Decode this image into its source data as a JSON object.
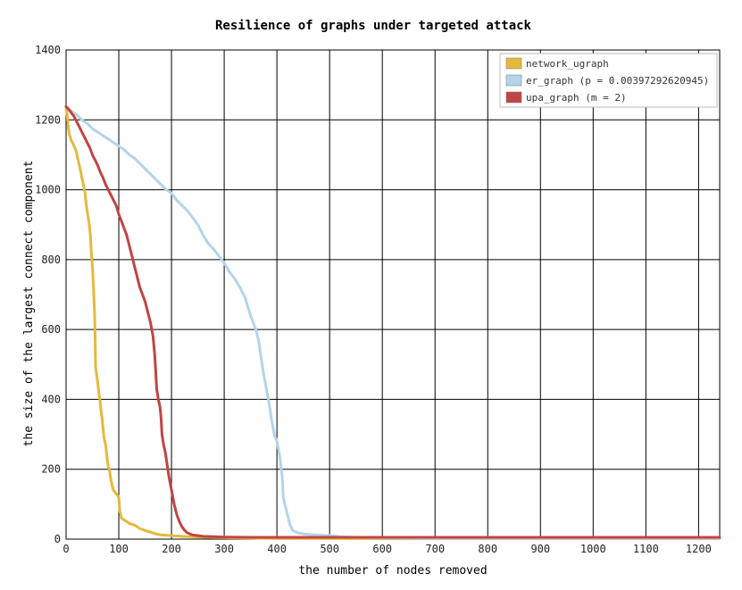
{
  "chart_data": {
    "type": "line",
    "title": "Resilience of graphs under targeted attack",
    "xlabel": "the number of nodes removed",
    "ylabel": "the size of the largest connect component",
    "xlim": [
      0,
      1240
    ],
    "ylim": [
      0,
      1400
    ],
    "xticks": [
      0,
      100,
      200,
      300,
      400,
      500,
      600,
      700,
      800,
      900,
      1000,
      1100,
      1200
    ],
    "yticks": [
      0,
      200,
      400,
      600,
      800,
      1000,
      1200,
      1400
    ],
    "grid": true,
    "legend_position": "top-right",
    "series": [
      {
        "name": "network_ugraph",
        "color": "#e6b93c",
        "x": [
          0,
          2,
          4,
          6,
          8,
          10,
          12,
          15,
          18,
          20,
          22,
          25,
          28,
          30,
          32,
          34,
          36,
          38,
          40,
          42,
          44,
          46,
          48,
          50,
          52,
          54,
          55,
          56,
          58,
          60,
          62,
          64,
          66,
          68,
          70,
          72,
          75,
          78,
          80,
          82,
          85,
          88,
          90,
          95,
          100,
          102,
          105,
          110,
          115,
          120,
          130,
          140,
          150,
          160,
          170,
          180,
          200,
          220,
          250,
          300,
          400,
          500,
          600,
          700,
          800,
          900,
          1000,
          1100,
          1200,
          1240
        ],
        "y": [
          1238,
          1215,
          1180,
          1160,
          1150,
          1140,
          1135,
          1125,
          1115,
          1105,
          1090,
          1070,
          1050,
          1035,
          1020,
          1005,
          990,
          960,
          940,
          920,
          900,
          870,
          820,
          780,
          720,
          650,
          580,
          490,
          470,
          450,
          420,
          400,
          370,
          350,
          320,
          290,
          270,
          230,
          210,
          200,
          170,
          150,
          140,
          130,
          120,
          80,
          60,
          55,
          50,
          45,
          40,
          30,
          25,
          20,
          15,
          12,
          10,
          8,
          6,
          4,
          2,
          2,
          1,
          1,
          1,
          1,
          1,
          1,
          1,
          1
        ]
      },
      {
        "name": "er_graph (p = 0.00397292620945)",
        "color": "#b3d4ea",
        "x": [
          0,
          10,
          20,
          30,
          40,
          50,
          60,
          70,
          80,
          90,
          100,
          110,
          120,
          130,
          140,
          150,
          160,
          170,
          180,
          190,
          200,
          210,
          220,
          230,
          240,
          250,
          260,
          270,
          280,
          290,
          300,
          310,
          320,
          330,
          340,
          350,
          360,
          365,
          370,
          375,
          380,
          385,
          390,
          395,
          400,
          405,
          410,
          412,
          415,
          420,
          425,
          430,
          440,
          450,
          470,
          500,
          520,
          550,
          600,
          700,
          800,
          900,
          1000,
          1100,
          1200,
          1240
        ],
        "y": [
          1238,
          1225,
          1215,
          1200,
          1190,
          1175,
          1165,
          1155,
          1145,
          1135,
          1125,
          1115,
          1100,
          1090,
          1075,
          1060,
          1045,
          1030,
          1015,
          1000,
          990,
          970,
          955,
          940,
          920,
          900,
          870,
          845,
          830,
          810,
          790,
          765,
          745,
          720,
          690,
          640,
          600,
          570,
          520,
          470,
          430,
          390,
          340,
          300,
          280,
          240,
          180,
          120,
          100,
          70,
          40,
          25,
          18,
          15,
          12,
          10,
          7,
          5,
          3,
          2,
          2,
          2,
          2,
          2,
          2,
          2
        ]
      },
      {
        "name": "upa_graph (m = 2)",
        "color": "#c24444",
        "x": [
          0,
          5,
          10,
          15,
          20,
          25,
          30,
          35,
          40,
          45,
          50,
          55,
          60,
          65,
          70,
          75,
          80,
          85,
          90,
          95,
          100,
          105,
          110,
          115,
          120,
          125,
          130,
          135,
          140,
          145,
          150,
          155,
          160,
          165,
          168,
          170,
          172,
          175,
          178,
          180,
          182,
          185,
          188,
          190,
          195,
          200,
          205,
          210,
          215,
          220,
          225,
          230,
          240,
          250,
          260,
          280,
          300,
          350,
          400,
          500,
          600,
          700,
          800,
          900,
          1000,
          1100,
          1200,
          1240
        ],
        "y": [
          1238,
          1230,
          1220,
          1210,
          1195,
          1180,
          1165,
          1150,
          1135,
          1120,
          1100,
          1085,
          1070,
          1050,
          1035,
          1015,
          1000,
          985,
          970,
          955,
          930,
          910,
          890,
          870,
          840,
          810,
          780,
          750,
          720,
          700,
          680,
          650,
          620,
          580,
          530,
          480,
          430,
          400,
          380,
          350,
          300,
          270,
          250,
          230,
          180,
          140,
          100,
          70,
          50,
          35,
          25,
          18,
          12,
          10,
          8,
          7,
          6,
          5,
          5,
          5,
          5,
          5,
          5,
          5,
          5,
          5,
          5,
          5
        ]
      }
    ]
  }
}
